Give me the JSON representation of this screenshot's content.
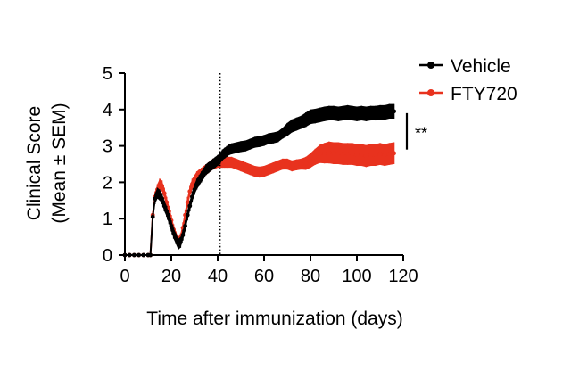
{
  "chart_data": {
    "type": "line",
    "xlabel": "Time after immunization (days)",
    "ylabel_line1": "Clinical Score",
    "ylabel_line2": "(Mean ± SEM)",
    "xlim": [
      0,
      120
    ],
    "ylim": [
      0,
      5
    ],
    "x_ticks": [
      0,
      20,
      40,
      60,
      80,
      100,
      120
    ],
    "y_ticks": [
      0,
      1,
      2,
      3,
      4,
      5
    ],
    "x_tick_labels": [
      "0",
      "20",
      "40",
      "60",
      "80",
      "100",
      "120"
    ],
    "y_tick_labels": [
      "0",
      "1",
      "2",
      "3",
      "4",
      "5"
    ],
    "grid": false,
    "legend_position": "top-right",
    "annotations": {
      "vertical_dotted_line_at_x": 41,
      "significance_label": "**",
      "significance_range": [
        2.9,
        3.9
      ]
    },
    "colors": {
      "vehicle": "#000000",
      "fty720": "#e8321e"
    },
    "series": [
      {
        "name": "Vehicle",
        "color": "#000000",
        "points": [
          [
            0,
            0,
            0
          ],
          [
            2,
            0,
            0
          ],
          [
            4,
            0,
            0
          ],
          [
            6,
            0,
            0
          ],
          [
            8,
            0,
            0
          ],
          [
            10,
            0,
            0
          ],
          [
            11,
            0,
            0
          ],
          [
            12,
            1.05,
            0.1
          ],
          [
            13,
            1.55,
            0.15
          ],
          [
            14,
            1.7,
            0.15
          ],
          [
            15,
            1.65,
            0.15
          ],
          [
            16,
            1.55,
            0.15
          ],
          [
            17,
            1.35,
            0.15
          ],
          [
            18,
            1.2,
            0.15
          ],
          [
            19,
            1.0,
            0.15
          ],
          [
            20,
            0.8,
            0.15
          ],
          [
            21,
            0.6,
            0.15
          ],
          [
            22,
            0.45,
            0.15
          ],
          [
            23,
            0.3,
            0.15
          ],
          [
            24,
            0.35,
            0.15
          ],
          [
            25,
            0.55,
            0.15
          ],
          [
            26,
            0.8,
            0.15
          ],
          [
            27,
            1.1,
            0.15
          ],
          [
            28,
            1.35,
            0.15
          ],
          [
            29,
            1.6,
            0.15
          ],
          [
            30,
            1.8,
            0.15
          ],
          [
            31,
            1.95,
            0.15
          ],
          [
            32,
            2.05,
            0.15
          ],
          [
            33,
            2.15,
            0.15
          ],
          [
            34,
            2.25,
            0.15
          ],
          [
            35,
            2.35,
            0.15
          ],
          [
            36,
            2.4,
            0.15
          ],
          [
            37,
            2.45,
            0.15
          ],
          [
            38,
            2.5,
            0.15
          ],
          [
            39,
            2.55,
            0.15
          ],
          [
            40,
            2.6,
            0.15
          ],
          [
            41,
            2.65,
            0.15
          ],
          [
            42,
            2.75,
            0.15
          ],
          [
            43,
            2.8,
            0.15
          ],
          [
            44,
            2.85,
            0.15
          ],
          [
            45,
            2.9,
            0.15
          ],
          [
            46,
            2.92,
            0.15
          ],
          [
            48,
            2.95,
            0.15
          ],
          [
            50,
            2.98,
            0.15
          ],
          [
            52,
            3.0,
            0.15
          ],
          [
            54,
            3.05,
            0.15
          ],
          [
            56,
            3.1,
            0.15
          ],
          [
            58,
            3.12,
            0.15
          ],
          [
            60,
            3.15,
            0.15
          ],
          [
            62,
            3.2,
            0.15
          ],
          [
            64,
            3.22,
            0.15
          ],
          [
            66,
            3.25,
            0.15
          ],
          [
            68,
            3.35,
            0.15
          ],
          [
            70,
            3.45,
            0.18
          ],
          [
            72,
            3.55,
            0.18
          ],
          [
            74,
            3.6,
            0.18
          ],
          [
            76,
            3.65,
            0.18
          ],
          [
            78,
            3.72,
            0.2
          ],
          [
            80,
            3.8,
            0.2
          ],
          [
            82,
            3.82,
            0.2
          ],
          [
            84,
            3.85,
            0.2
          ],
          [
            86,
            3.88,
            0.2
          ],
          [
            88,
            3.9,
            0.2
          ],
          [
            90,
            3.9,
            0.2
          ],
          [
            92,
            3.88,
            0.2
          ],
          [
            94,
            3.9,
            0.2
          ],
          [
            96,
            3.92,
            0.2
          ],
          [
            98,
            3.9,
            0.2
          ],
          [
            100,
            3.88,
            0.2
          ],
          [
            102,
            3.9,
            0.2
          ],
          [
            104,
            3.88,
            0.2
          ],
          [
            106,
            3.9,
            0.2
          ],
          [
            108,
            3.9,
            0.2
          ],
          [
            110,
            3.92,
            0.2
          ],
          [
            112,
            3.92,
            0.2
          ],
          [
            114,
            3.95,
            0.2
          ],
          [
            116,
            3.95,
            0.2
          ]
        ]
      },
      {
        "name": "FTY720",
        "color": "#e8321e",
        "points": [
          [
            0,
            0,
            0
          ],
          [
            2,
            0,
            0
          ],
          [
            4,
            0,
            0
          ],
          [
            6,
            0,
            0
          ],
          [
            8,
            0,
            0
          ],
          [
            10,
            0,
            0
          ],
          [
            11,
            0,
            0
          ],
          [
            12,
            1.1,
            0.1
          ],
          [
            13,
            1.6,
            0.15
          ],
          [
            14,
            1.8,
            0.15
          ],
          [
            15,
            1.95,
            0.15
          ],
          [
            16,
            1.9,
            0.15
          ],
          [
            17,
            1.7,
            0.15
          ],
          [
            18,
            1.45,
            0.15
          ],
          [
            19,
            1.2,
            0.15
          ],
          [
            20,
            0.95,
            0.15
          ],
          [
            21,
            0.7,
            0.15
          ],
          [
            22,
            0.5,
            0.15
          ],
          [
            23,
            0.35,
            0.15
          ],
          [
            24,
            0.45,
            0.15
          ],
          [
            25,
            0.75,
            0.15
          ],
          [
            26,
            1.1,
            0.15
          ],
          [
            27,
            1.45,
            0.15
          ],
          [
            28,
            1.75,
            0.15
          ],
          [
            29,
            1.95,
            0.15
          ],
          [
            30,
            2.05,
            0.15
          ],
          [
            31,
            2.15,
            0.15
          ],
          [
            32,
            2.2,
            0.15
          ],
          [
            33,
            2.25,
            0.15
          ],
          [
            34,
            2.3,
            0.15
          ],
          [
            35,
            2.35,
            0.15
          ],
          [
            36,
            2.4,
            0.15
          ],
          [
            37,
            2.45,
            0.15
          ],
          [
            38,
            2.5,
            0.15
          ],
          [
            39,
            2.52,
            0.15
          ],
          [
            40,
            2.55,
            0.15
          ],
          [
            41,
            2.55,
            0.15
          ],
          [
            42,
            2.55,
            0.15
          ],
          [
            43,
            2.55,
            0.15
          ],
          [
            44,
            2.55,
            0.15
          ],
          [
            46,
            2.55,
            0.15
          ],
          [
            48,
            2.5,
            0.15
          ],
          [
            50,
            2.45,
            0.15
          ],
          [
            52,
            2.4,
            0.15
          ],
          [
            54,
            2.35,
            0.15
          ],
          [
            56,
            2.3,
            0.15
          ],
          [
            58,
            2.28,
            0.15
          ],
          [
            60,
            2.3,
            0.15
          ],
          [
            62,
            2.35,
            0.15
          ],
          [
            64,
            2.4,
            0.15
          ],
          [
            66,
            2.45,
            0.15
          ],
          [
            68,
            2.5,
            0.15
          ],
          [
            70,
            2.5,
            0.15
          ],
          [
            72,
            2.45,
            0.15
          ],
          [
            74,
            2.48,
            0.15
          ],
          [
            76,
            2.5,
            0.15
          ],
          [
            78,
            2.52,
            0.18
          ],
          [
            80,
            2.6,
            0.2
          ],
          [
            82,
            2.7,
            0.22
          ],
          [
            84,
            2.78,
            0.25
          ],
          [
            86,
            2.8,
            0.28
          ],
          [
            88,
            2.82,
            0.3
          ],
          [
            90,
            2.8,
            0.3
          ],
          [
            92,
            2.8,
            0.3
          ],
          [
            94,
            2.78,
            0.3
          ],
          [
            96,
            2.78,
            0.3
          ],
          [
            98,
            2.78,
            0.3
          ],
          [
            100,
            2.75,
            0.3
          ],
          [
            102,
            2.75,
            0.3
          ],
          [
            104,
            2.72,
            0.3
          ],
          [
            106,
            2.75,
            0.3
          ],
          [
            108,
            2.75,
            0.3
          ],
          [
            110,
            2.78,
            0.3
          ],
          [
            112,
            2.75,
            0.3
          ],
          [
            114,
            2.78,
            0.3
          ],
          [
            116,
            2.8,
            0.3
          ]
        ]
      }
    ]
  }
}
